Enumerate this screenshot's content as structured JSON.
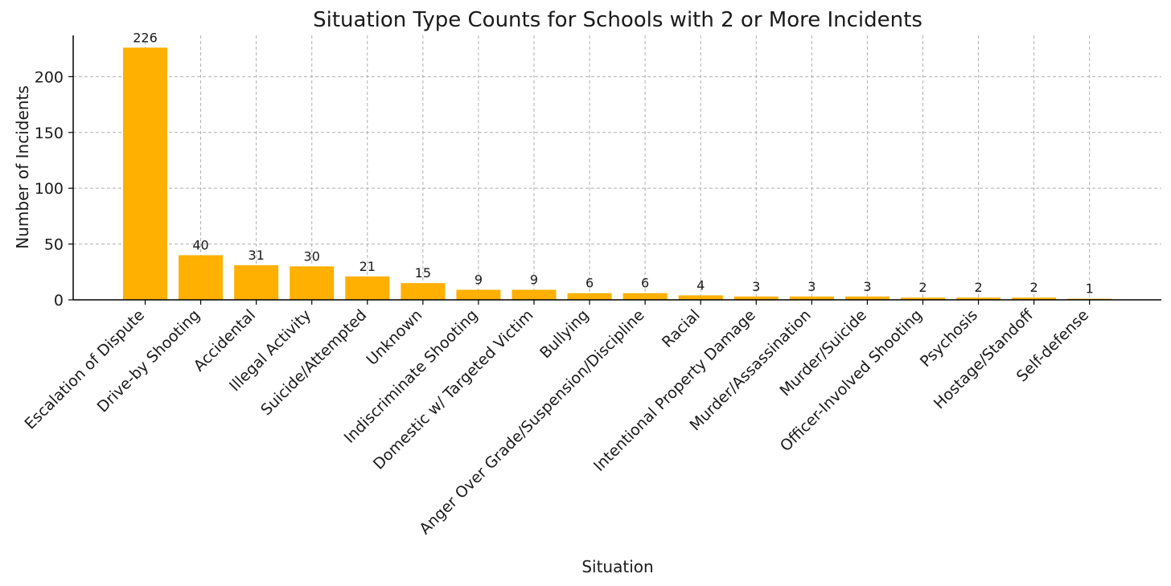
{
  "chart_data": {
    "type": "bar",
    "title": "Situation Type Counts for Schools with 2 or More Incidents",
    "xlabel": "Situation",
    "ylabel": "Number of Incidents",
    "categories": [
      "Escalation of Dispute",
      "Drive-by Shooting",
      "Accidental",
      "Illegal Activity",
      "Suicide/Attempted",
      "Unknown",
      "Indiscriminate Shooting",
      "Domestic w/ Targeted Victim",
      "Bullying",
      "Anger Over Grade/Suspension/Discipline",
      "Racial",
      "Intentional Property Damage",
      "Murder/Assassination",
      "Murder/Suicide",
      "Officer-Involved Shooting",
      "Psychosis",
      "Hostage/Standoff",
      "Self-defense"
    ],
    "values": [
      226,
      40,
      31,
      30,
      21,
      15,
      9,
      9,
      6,
      6,
      4,
      3,
      3,
      3,
      2,
      2,
      2,
      1
    ],
    "data_labels": [
      "226",
      "40",
      "31",
      "30",
      "21",
      "15",
      "9",
      "9",
      "6",
      "6",
      "4",
      "3",
      "3",
      "3",
      "2",
      "2",
      "2",
      "1"
    ],
    "ylim": [
      0,
      237
    ],
    "yticks": [
      0,
      50,
      100,
      150,
      200
    ],
    "ytick_labels": [
      "0",
      "50",
      "100",
      "150",
      "200"
    ],
    "grid": true,
    "bar_color": "#FFB000"
  }
}
